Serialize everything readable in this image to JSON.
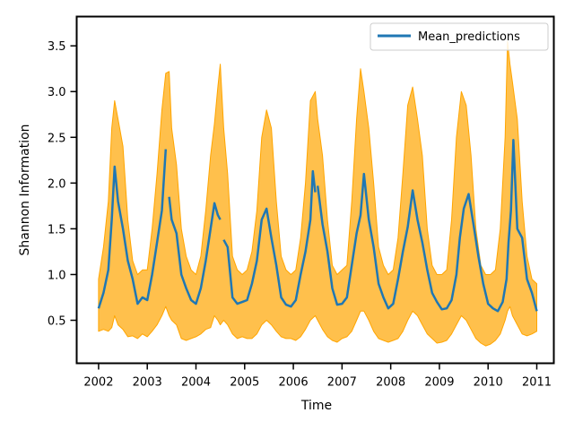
{
  "chart_data": {
    "type": "line",
    "title": "",
    "xlabel": "Time",
    "ylabel": "Shannon Information",
    "xlim": [
      2001.55,
      2011.35
    ],
    "ylim": [
      0.03,
      3.82
    ],
    "x_ticks": [
      2002,
      2003,
      2004,
      2005,
      2006,
      2007,
      2008,
      2009,
      2010,
      2011
    ],
    "x_tick_labels": [
      "2002",
      "2003",
      "2004",
      "2005",
      "2006",
      "2007",
      "2008",
      "2009",
      "2010",
      "2011"
    ],
    "y_ticks": [
      0.5,
      1.0,
      1.5,
      2.0,
      2.5,
      3.0,
      3.5
    ],
    "y_tick_labels": [
      "0.5",
      "1.0",
      "1.5",
      "2.0",
      "2.5",
      "3.0",
      "3.5"
    ],
    "grid": false,
    "legend": {
      "position": "top-right",
      "entries": [
        "Mean_predictions"
      ]
    },
    "colors": {
      "mean": "#1f77b4",
      "band": "#ffa500",
      "band_opacity": 0.7
    },
    "series": [
      {
        "name": "Mean_predictions",
        "kind": "line",
        "x": [
          2002.0,
          2002.1,
          2002.2,
          2002.27,
          2002.33,
          2002.4,
          2002.5,
          2002.6,
          2002.7,
          2002.8,
          2002.9,
          2003.0,
          2003.1,
          2003.2,
          2003.3,
          2003.38,
          null,
          2003.45,
          2003.5,
          2003.6,
          2003.7,
          2003.8,
          2003.9,
          2004.0,
          2004.1,
          2004.2,
          2004.3,
          2004.38,
          2004.45,
          2004.5,
          null,
          2004.57,
          2004.65,
          2004.75,
          2004.85,
          2004.95,
          2005.05,
          2005.15,
          2005.25,
          2005.35,
          2005.45,
          2005.55,
          2005.65,
          2005.75,
          2005.85,
          2005.95,
          2006.05,
          2006.15,
          2006.25,
          2006.35,
          2006.4,
          2006.45,
          null,
          2006.5,
          2006.6,
          2006.7,
          2006.8,
          2006.9,
          2007.0,
          2007.1,
          2007.2,
          2007.3,
          2007.38,
          2007.45,
          2007.55,
          2007.65,
          2007.75,
          2007.85,
          2007.95,
          2008.05,
          2008.15,
          2008.25,
          2008.35,
          2008.45,
          2008.55,
          2008.65,
          2008.75,
          2008.85,
          2008.95,
          2009.05,
          2009.15,
          2009.25,
          2009.35,
          2009.42,
          2009.5,
          2009.6,
          2009.7,
          2009.8,
          2009.9,
          2010.0,
          2010.1,
          2010.2,
          2010.3,
          2010.38,
          2010.42,
          2010.47,
          2010.52,
          2010.6,
          2010.7,
          2010.8,
          2010.9,
          2011.0
        ],
        "y": [
          0.63,
          0.8,
          1.05,
          1.6,
          2.18,
          1.8,
          1.5,
          1.15,
          0.95,
          0.68,
          0.75,
          0.72,
          1.0,
          1.35,
          1.7,
          2.37,
          null,
          1.85,
          1.6,
          1.45,
          1.0,
          0.85,
          0.72,
          0.68,
          0.85,
          1.15,
          1.5,
          1.78,
          1.65,
          1.6,
          null,
          1.38,
          1.3,
          0.75,
          0.68,
          0.7,
          0.72,
          0.9,
          1.15,
          1.6,
          1.72,
          1.4,
          1.1,
          0.75,
          0.67,
          0.65,
          0.72,
          1.0,
          1.25,
          1.6,
          2.13,
          1.9,
          null,
          1.97,
          1.55,
          1.25,
          0.85,
          0.67,
          0.68,
          0.75,
          1.1,
          1.45,
          1.65,
          2.1,
          1.6,
          1.3,
          0.9,
          0.75,
          0.63,
          0.68,
          0.95,
          1.25,
          1.52,
          1.92,
          1.6,
          1.35,
          1.05,
          0.8,
          0.7,
          0.62,
          0.63,
          0.72,
          1.0,
          1.4,
          1.72,
          1.88,
          1.55,
          1.2,
          0.9,
          0.68,
          0.63,
          0.6,
          0.7,
          0.95,
          1.35,
          1.7,
          2.47,
          1.5,
          1.4,
          0.95,
          0.8,
          0.6
        ]
      },
      {
        "name": "",
        "kind": "band",
        "x": [
          2002.0,
          2002.1,
          2002.2,
          2002.27,
          2002.33,
          2002.4,
          2002.5,
          2002.6,
          2002.7,
          2002.8,
          2002.9,
          2003.0,
          2003.1,
          2003.2,
          2003.3,
          2003.38,
          2003.45,
          2003.5,
          2003.6,
          2003.7,
          2003.8,
          2003.9,
          2004.0,
          2004.1,
          2004.2,
          2004.3,
          2004.38,
          2004.45,
          2004.5,
          2004.57,
          2004.65,
          2004.75,
          2004.85,
          2004.95,
          2005.05,
          2005.15,
          2005.25,
          2005.35,
          2005.45,
          2005.55,
          2005.65,
          2005.75,
          2005.85,
          2005.95,
          2006.05,
          2006.15,
          2006.25,
          2006.35,
          2006.45,
          2006.5,
          2006.6,
          2006.7,
          2006.8,
          2006.9,
          2007.0,
          2007.1,
          2007.2,
          2007.3,
          2007.38,
          2007.45,
          2007.55,
          2007.65,
          2007.75,
          2007.85,
          2007.95,
          2008.05,
          2008.15,
          2008.25,
          2008.35,
          2008.45,
          2008.55,
          2008.65,
          2008.75,
          2008.85,
          2008.95,
          2009.05,
          2009.15,
          2009.25,
          2009.35,
          2009.45,
          2009.55,
          2009.65,
          2009.75,
          2009.85,
          2009.95,
          2010.05,
          2010.15,
          2010.25,
          2010.35,
          2010.4,
          2010.45,
          2010.5,
          2010.6,
          2010.7,
          2010.8,
          2010.9,
          2011.0
        ],
        "lower": [
          0.38,
          0.4,
          0.38,
          0.42,
          0.55,
          0.45,
          0.4,
          0.32,
          0.33,
          0.3,
          0.35,
          0.32,
          0.38,
          0.45,
          0.55,
          0.65,
          0.55,
          0.5,
          0.45,
          0.3,
          0.28,
          0.3,
          0.32,
          0.35,
          0.4,
          0.42,
          0.55,
          0.5,
          0.45,
          0.5,
          0.45,
          0.35,
          0.3,
          0.32,
          0.3,
          0.3,
          0.35,
          0.45,
          0.5,
          0.45,
          0.38,
          0.32,
          0.3,
          0.3,
          0.28,
          0.32,
          0.4,
          0.5,
          0.55,
          0.5,
          0.4,
          0.32,
          0.28,
          0.26,
          0.3,
          0.32,
          0.38,
          0.5,
          0.6,
          0.6,
          0.5,
          0.38,
          0.3,
          0.28,
          0.26,
          0.28,
          0.3,
          0.38,
          0.5,
          0.6,
          0.55,
          0.45,
          0.35,
          0.3,
          0.25,
          0.26,
          0.28,
          0.35,
          0.45,
          0.55,
          0.5,
          0.4,
          0.3,
          0.25,
          0.22,
          0.24,
          0.28,
          0.35,
          0.5,
          0.6,
          0.65,
          0.55,
          0.45,
          0.35,
          0.33,
          0.35,
          0.38
        ],
        "upper": [
          0.95,
          1.3,
          1.8,
          2.6,
          2.9,
          2.7,
          2.4,
          1.6,
          1.15,
          1.0,
          1.05,
          1.05,
          1.5,
          2.1,
          2.8,
          3.2,
          3.22,
          2.6,
          2.2,
          1.5,
          1.2,
          1.05,
          1.0,
          1.2,
          1.7,
          2.3,
          2.65,
          3.05,
          3.3,
          2.6,
          2.1,
          1.2,
          1.05,
          1.0,
          1.05,
          1.25,
          1.7,
          2.5,
          2.8,
          2.6,
          1.8,
          1.2,
          1.05,
          1.0,
          1.05,
          1.4,
          2.0,
          2.9,
          3.0,
          2.7,
          2.3,
          1.6,
          1.1,
          1.0,
          1.05,
          1.1,
          1.8,
          2.7,
          3.25,
          3.0,
          2.6,
          2.0,
          1.3,
          1.1,
          1.0,
          1.05,
          1.4,
          2.1,
          2.85,
          3.05,
          2.7,
          2.3,
          1.5,
          1.1,
          1.0,
          1.0,
          1.05,
          1.6,
          2.5,
          3.0,
          2.85,
          2.3,
          1.5,
          1.1,
          1.0,
          1.0,
          1.05,
          1.5,
          2.5,
          3.55,
          3.3,
          3.1,
          2.7,
          1.8,
          1.2,
          0.95,
          0.9
        ]
      }
    ]
  }
}
